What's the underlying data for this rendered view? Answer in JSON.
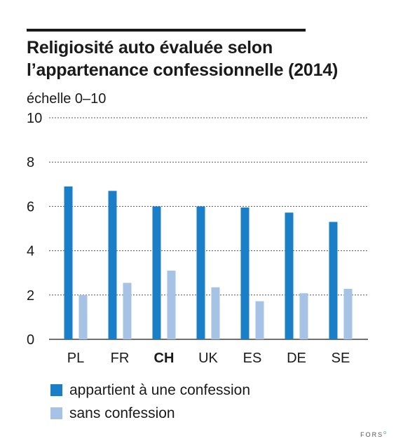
{
  "title": {
    "line1": "Religiosité auto évaluée selon",
    "line2": "l’appartenance confessionnelle (2014)"
  },
  "unit_label": "échelle 0–10",
  "brand": {
    "name": "FORS",
    "mark": "o"
  },
  "colors": {
    "series1": "#1a7fc6",
    "series2": "#a6c3e6",
    "grid": "#555555",
    "axis": "#1a1a1a"
  },
  "chart_data": {
    "type": "bar",
    "categories": [
      "PL",
      "FR",
      "CH",
      "UK",
      "ES",
      "DE",
      "SE"
    ],
    "highlight_category": "CH",
    "series": [
      {
        "name": "appartient à une confession",
        "values": [
          6.9,
          6.7,
          6.0,
          6.0,
          5.95,
          5.72,
          5.3
        ]
      },
      {
        "name": "sans confession",
        "values": [
          2.0,
          2.55,
          3.1,
          2.35,
          1.72,
          2.08,
          2.28
        ]
      }
    ],
    "ylim": [
      0,
      10
    ],
    "yticks": [
      0,
      2,
      4,
      6,
      8,
      10
    ],
    "grid": true,
    "legend_position": "bottom-left"
  }
}
